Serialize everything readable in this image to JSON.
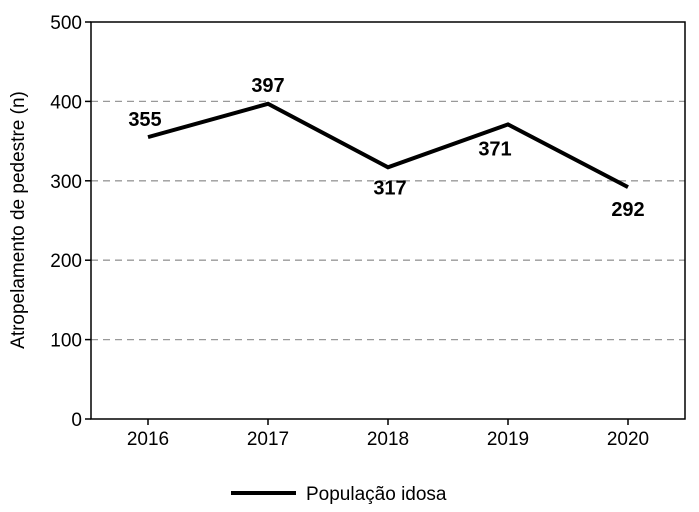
{
  "chart_data": {
    "type": "line",
    "title": "",
    "xlabel": "",
    "ylabel": "Atropelamento de pedestre (n)",
    "categories": [
      "2016",
      "2017",
      "2018",
      "2019",
      "2020"
    ],
    "series": [
      {
        "name": "População idosa",
        "values": [
          355,
          397,
          317,
          371,
          292
        ],
        "color": "#000000"
      }
    ],
    "ylim": [
      0,
      500
    ],
    "yticks": [
      0,
      100,
      200,
      300,
      400,
      500
    ],
    "grid": "horizontal-dashed",
    "legend_position": "bottom-center",
    "data_labels": [
      "355",
      "397",
      "317",
      "371",
      "292"
    ]
  }
}
